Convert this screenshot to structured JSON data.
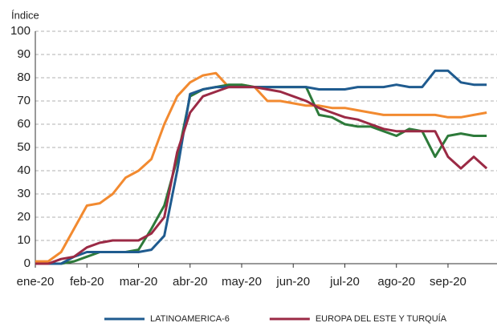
{
  "chart_data": {
    "type": "line",
    "y_label": "Índice",
    "x": [
      0,
      0.25,
      0.5,
      0.75,
      1,
      1.25,
      1.5,
      1.75,
      2,
      2.25,
      2.5,
      2.75,
      3,
      3.25,
      3.5,
      3.75,
      4,
      4.25,
      4.5,
      4.75,
      5,
      5.25,
      5.5,
      5.75,
      6,
      6.25,
      6.5,
      6.75,
      7,
      7.25,
      7.5,
      7.75,
      8,
      8.25,
      8.5,
      8.75
    ],
    "xlim": [
      0,
      8.95
    ],
    "xticks": [
      {
        "value": 0,
        "label": "ene-20"
      },
      {
        "value": 1,
        "label": "feb-20"
      },
      {
        "value": 2,
        "label": "mar-20"
      },
      {
        "value": 3,
        "label": "abr-20"
      },
      {
        "value": 4,
        "label": "may-20"
      },
      {
        "value": 5,
        "label": "jun-20"
      },
      {
        "value": 6,
        "label": "jul-20"
      },
      {
        "value": 7,
        "label": "ago-20"
      },
      {
        "value": 8,
        "label": "sep-20"
      }
    ],
    "ylim": [
      0,
      100
    ],
    "yticks": [
      0,
      10,
      20,
      30,
      40,
      50,
      60,
      70,
      80,
      90,
      100
    ],
    "grid": true,
    "series": [
      {
        "name": "LATINOAMERICA-6",
        "color": "#1f5b8f",
        "values": [
          0,
          0,
          0,
          3,
          5,
          5,
          5,
          5,
          5,
          6,
          12,
          40,
          73,
          75,
          76,
          76,
          76,
          76,
          76,
          76,
          76,
          76,
          75,
          75,
          75,
          76,
          76,
          76,
          77,
          76,
          76,
          83,
          83,
          78,
          77,
          77
        ]
      },
      {
        "name": "EUROPA DEL ESTE Y TURQUÍA",
        "color": "#9b2a45",
        "values": [
          0,
          0,
          2,
          3,
          7,
          9,
          10,
          10,
          10,
          13,
          20,
          48,
          65,
          72,
          74,
          76,
          76,
          76,
          75,
          74,
          72,
          70,
          67,
          65,
          63,
          62,
          60,
          58,
          57,
          57,
          57,
          57,
          46,
          41,
          46,
          41
        ]
      },
      {
        "color": "#f28a30",
        "values": [
          1,
          1,
          5,
          15,
          25,
          26,
          30,
          37,
          40,
          45,
          60,
          72,
          78,
          81,
          82,
          76,
          77,
          76,
          70,
          70,
          69,
          68,
          68,
          67,
          67,
          66,
          65,
          64,
          64,
          64,
          64,
          64,
          63,
          63,
          64,
          65
        ]
      },
      {
        "color": "#2d7a3a",
        "values": [
          0,
          0,
          0,
          1,
          3,
          5,
          5,
          5,
          6,
          15,
          25,
          45,
          72,
          75,
          76,
          77,
          77,
          76,
          76,
          76,
          76,
          76,
          64,
          63,
          60,
          59,
          59,
          57,
          55,
          58,
          57,
          46,
          55,
          56,
          55,
          55
        ]
      }
    ]
  }
}
